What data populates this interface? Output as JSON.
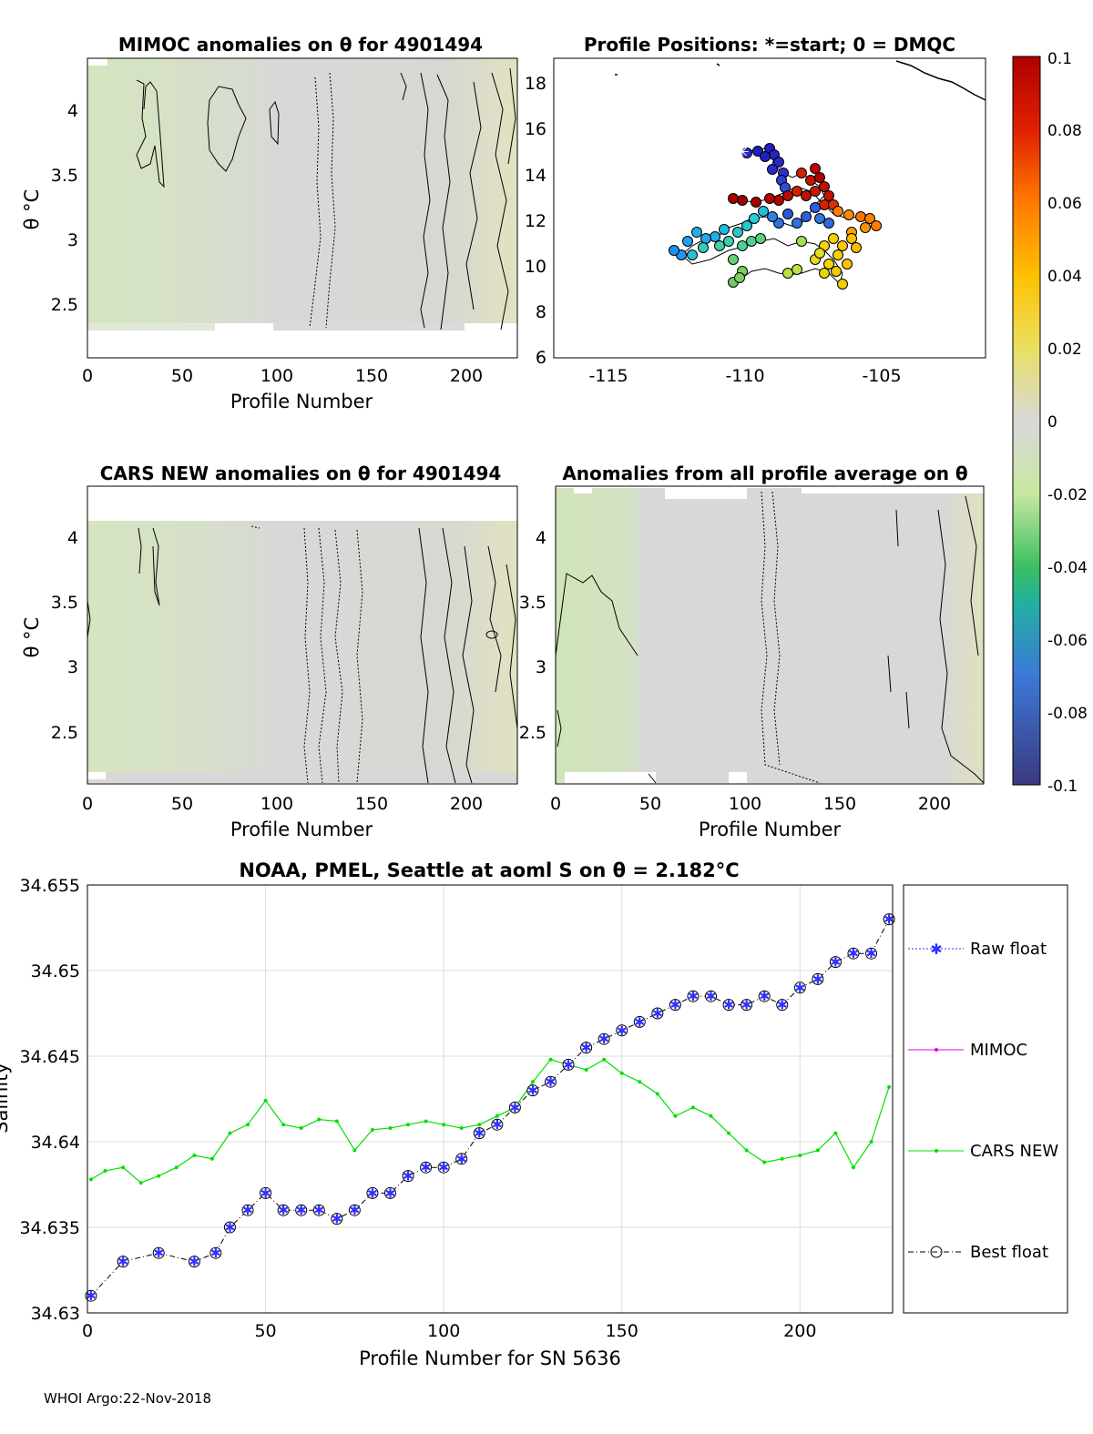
{
  "panels": {
    "mimoc": {
      "title": "MIMOC anomalies on θ  for 4901494",
      "xlabel": "Profile Number",
      "ylabel": "θ °C",
      "xticks": [
        "0",
        "50",
        "100",
        "150",
        "200"
      ],
      "yticks": [
        "2.5",
        "3",
        "3.5",
        "4"
      ]
    },
    "positions": {
      "title": "Profile Positions: *=start; 0 = DMQC",
      "xticks": [
        "-115",
        "-110",
        "-105"
      ],
      "yticks": [
        "6",
        "8",
        "10",
        "12",
        "14",
        "16",
        "18"
      ]
    },
    "cars": {
      "title": "CARS NEW anomalies on θ for 4901494",
      "xlabel": "Profile Number",
      "ylabel": "θ °C",
      "xticks": [
        "0",
        "50",
        "100",
        "150",
        "200"
      ],
      "yticks": [
        "2.5",
        "3",
        "3.5",
        "4"
      ]
    },
    "avg": {
      "title": "Anomalies from all profile average on θ",
      "xlabel": "Profile Number",
      "xticks": [
        "0",
        "50",
        "100",
        "150",
        "200"
      ],
      "yticks": [
        "2.5",
        "3",
        "3.5",
        "4"
      ]
    }
  },
  "colorbar": {
    "ticks": [
      "0.1",
      "0.08",
      "0.06",
      "0.04",
      "0.02",
      "0",
      "-0.02",
      "-0.04",
      "-0.06",
      "-0.08",
      "-0.1"
    ]
  },
  "chart_data": {
    "type": "line",
    "title": "NOAA, PMEL, Seattle at aoml S on θ = 2.182°C",
    "xlabel": "Profile Number for SN 5636",
    "ylabel": "Salinity",
    "xlim": [
      0,
      226
    ],
    "ylim": [
      34.63,
      34.655
    ],
    "xticks": [
      "0",
      "50",
      "100",
      "150",
      "200"
    ],
    "yticks": [
      "34.63",
      "34.635",
      "34.64",
      "34.645",
      "34.65",
      "34.655"
    ],
    "legend": [
      "Raw float",
      "MIMOC",
      "CARS NEW",
      "Best float"
    ],
    "series": [
      {
        "name": "Raw float / Best float (approx.)",
        "x": [
          1,
          10,
          20,
          30,
          36,
          40,
          45,
          50,
          55,
          60,
          65,
          70,
          75,
          80,
          85,
          90,
          95,
          100,
          105,
          110,
          115,
          120,
          125,
          130,
          135,
          140,
          145,
          150,
          155,
          160,
          165,
          170,
          175,
          180,
          185,
          190,
          195,
          200,
          205,
          210,
          215,
          220,
          225
        ],
        "values": [
          34.631,
          34.633,
          34.6335,
          34.633,
          34.6335,
          34.635,
          34.636,
          34.637,
          34.636,
          34.636,
          34.636,
          34.6355,
          34.636,
          34.637,
          34.637,
          34.638,
          34.6385,
          34.6385,
          34.639,
          34.6405,
          34.641,
          34.642,
          34.643,
          34.6435,
          34.6445,
          34.6455,
          34.646,
          34.6465,
          34.647,
          34.6475,
          34.648,
          34.6485,
          34.6485,
          34.648,
          34.648,
          34.6485,
          34.648,
          34.649,
          34.6495,
          34.6505,
          34.651,
          34.651,
          34.653
        ]
      },
      {
        "name": "CARS NEW (approx.)",
        "x": [
          1,
          5,
          10,
          15,
          20,
          25,
          30,
          35,
          40,
          45,
          50,
          55,
          60,
          65,
          70,
          75,
          80,
          85,
          90,
          95,
          100,
          105,
          110,
          115,
          120,
          125,
          130,
          135,
          140,
          145,
          150,
          155,
          160,
          165,
          170,
          175,
          180,
          185,
          190,
          195,
          200,
          205,
          210,
          215,
          220,
          225
        ],
        "values": [
          34.6378,
          34.6383,
          34.6385,
          34.6376,
          34.638,
          34.6385,
          34.6392,
          34.639,
          34.6405,
          34.641,
          34.6424,
          34.641,
          34.6408,
          34.6413,
          34.6412,
          34.6395,
          34.6407,
          34.6408,
          34.641,
          34.6412,
          34.641,
          34.6408,
          34.641,
          34.6415,
          34.642,
          34.6435,
          34.6448,
          34.6445,
          34.6442,
          34.6448,
          34.644,
          34.6435,
          34.6428,
          34.6415,
          34.642,
          34.6415,
          34.6405,
          34.6395,
          34.6388,
          34.639,
          34.6392,
          34.6395,
          34.6405,
          34.6385,
          34.64,
          34.6432
        ]
      }
    ]
  },
  "footer": "WHOI Argo:22-Nov-2018"
}
